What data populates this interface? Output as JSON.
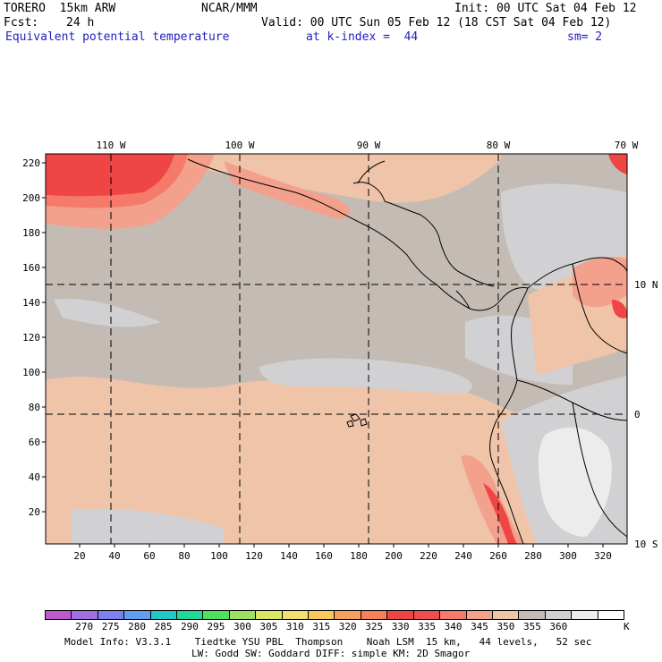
{
  "header": {
    "model": "TORERO  15km ARW",
    "center": "NCAR/MMM",
    "init": "Init: 00 UTC Sat 04 Feb 12",
    "fcst_label": "Fcst:",
    "fcst_value": "24 h",
    "valid": "Valid: 00 UTC Sun 05 Feb 12 (18 CST Sat 04 Feb 12)",
    "field": "Equivalent potential temperature",
    "level": "at k-index =  44",
    "smoothing": "sm= 2"
  },
  "map": {
    "lon_labels": [
      "110 W",
      "100 W",
      "90 W",
      "80 W",
      "70 W"
    ],
    "lat_labels": [
      "10 N",
      "0",
      "10 S"
    ],
    "y_ticks": [
      "220",
      "200",
      "180",
      "160",
      "140",
      "120",
      "100",
      "80",
      "60",
      "40",
      "20"
    ],
    "x_ticks": [
      "20",
      "40",
      "60",
      "80",
      "100",
      "120",
      "140",
      "160",
      "180",
      "200",
      "220",
      "240",
      "260",
      "280",
      "300",
      "320"
    ],
    "colors": {
      "c330": "#f04545",
      "c335": "#f57a6a",
      "c340": "#f3a08c",
      "c345": "#efc4a9",
      "c350": "#c4bcb4",
      "c355": "#d1d1d3",
      "c360": "#ececec",
      "coast": "#000000",
      "grid": "#000000"
    }
  },
  "colorbar": {
    "colors": [
      "#c058d0",
      "#a070e0",
      "#7f7ff0",
      "#5f9ff0",
      "#20c8c8",
      "#20d898",
      "#50e060",
      "#a0e060",
      "#d8e860",
      "#f0e070",
      "#f8c85c",
      "#f6a060",
      "#f88058",
      "#f04545",
      "#f04e4e",
      "#f57a6a",
      "#f3a08c",
      "#efc4a9",
      "#c4bcb4",
      "#d1d1d3",
      "#ececec",
      "#ffffff"
    ],
    "labels": [
      "270",
      "275",
      "280",
      "285",
      "290",
      "295",
      "300",
      "305",
      "310",
      "315",
      "320",
      "325",
      "330",
      "335",
      "340",
      "345",
      "350",
      "355",
      "360"
    ],
    "units": "K"
  },
  "footer": {
    "line1": "Model Info: V3.3.1    Tiedtke YSU PBL  Thompson    Noah LSM  15 km,   44 levels,   52 sec",
    "line2": "LW: Godd SW: Goddard DIFF: simple KM: 2D Smagor"
  }
}
